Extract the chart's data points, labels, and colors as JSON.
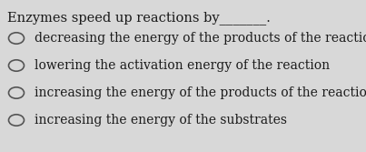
{
  "background_color": "#d8d8d8",
  "title": "Enzymes speed up reactions by_______.",
  "options": [
    "decreasing the energy of the products of the reaction",
    "lowering the activation energy of the reaction",
    "increasing the energy of the products of the reaction",
    "increasing the energy of the substrates"
  ],
  "title_fontsize": 10.5,
  "option_fontsize": 10.0,
  "text_color": "#1a1a1a",
  "circle_edge_color": "#555555",
  "circle_face_color": "#d8d8d8",
  "circle_lw": 1.2
}
